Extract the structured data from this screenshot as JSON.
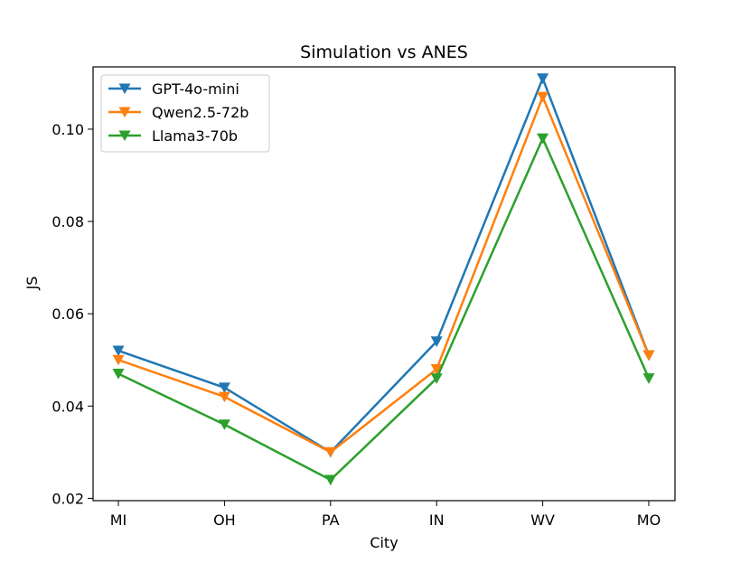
{
  "chart_data": {
    "type": "line",
    "title": "Simulation vs ANES",
    "xlabel": "City",
    "ylabel": "JS",
    "categories": [
      "MI",
      "OH",
      "PA",
      "IN",
      "WV",
      "MO"
    ],
    "ylim": [
      0.0195,
      0.1135
    ],
    "yticks": [
      0.02,
      0.04,
      0.06,
      0.08,
      0.1
    ],
    "ytick_labels": [
      "0.02",
      "0.04",
      "0.06",
      "0.08",
      "0.10"
    ],
    "grid": false,
    "legend_position": "top-left",
    "marker": "triangle-down",
    "series": [
      {
        "name": "GPT-4o-mini",
        "color": "#1f77b4",
        "values": [
          0.052,
          0.044,
          0.03,
          0.054,
          0.111,
          0.051
        ]
      },
      {
        "name": "Qwen2.5-72b",
        "color": "#ff7f0e",
        "values": [
          0.05,
          0.042,
          0.03,
          0.048,
          0.107,
          0.051
        ]
      },
      {
        "name": "Llama3-70b",
        "color": "#2ca02c",
        "values": [
          0.047,
          0.036,
          0.024,
          0.046,
          0.098,
          0.046
        ]
      }
    ]
  }
}
